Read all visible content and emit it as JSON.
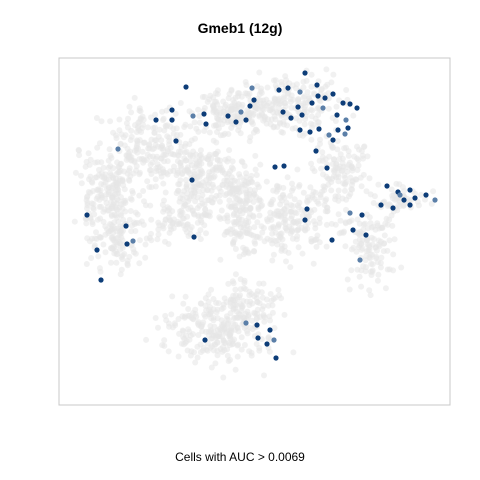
{
  "chart_data": {
    "type": "scatter",
    "title": "Gmeb1 (12g)",
    "xlabel": "Cells with AUC > 0.0069",
    "ylabel": "",
    "grid": false,
    "legend": "none",
    "background_color": "#e6e6e6",
    "highlight_color_dark": "#0d3d78",
    "highlight_color_light": "#5b7fa8",
    "series": [
      {
        "name": "",
        "color": "#0d3d78",
        "points": [
          [
            305,
            73
          ],
          [
            317,
            85
          ],
          [
            288,
            88
          ],
          [
            300,
            92
          ],
          [
            318,
            96
          ],
          [
            325,
            98
          ],
          [
            333,
            94
          ],
          [
            312,
            103
          ],
          [
            323,
            108
          ],
          [
            343,
            103
          ],
          [
            350,
            104
          ],
          [
            357,
            108
          ],
          [
            337,
            115
          ],
          [
            346,
            120
          ],
          [
            298,
            107
          ],
          [
            302,
            115
          ],
          [
            291,
            118
          ],
          [
            283,
            112
          ],
          [
            252,
            88
          ],
          [
            254,
            100
          ],
          [
            246,
            120
          ],
          [
            236,
            122
          ],
          [
            228,
            116
          ],
          [
            241,
            112
          ],
          [
            250,
            106
          ],
          [
            186,
            87
          ],
          [
            172,
            110
          ],
          [
            172,
            120
          ],
          [
            193,
            116
          ],
          [
            204,
            114
          ],
          [
            206,
            124
          ],
          [
            156,
            120
          ],
          [
            176,
            141
          ],
          [
            118,
            149
          ],
          [
            192,
            180
          ],
          [
            300,
            130
          ],
          [
            310,
            132
          ],
          [
            319,
            129
          ],
          [
            329,
            135
          ],
          [
            333,
            140
          ],
          [
            316,
            151
          ],
          [
            327,
            168
          ],
          [
            348,
            128
          ],
          [
            345,
            134
          ],
          [
            338,
            130
          ],
          [
            387,
            186
          ],
          [
            398,
            192
          ],
          [
            410,
            190
          ],
          [
            400,
            195
          ],
          [
            404,
            200
          ],
          [
            410,
            205
          ],
          [
            415,
            198
          ],
          [
            426,
            195
          ],
          [
            435,
            200
          ],
          [
            381,
            205
          ],
          [
            393,
            208
          ],
          [
            307,
            209
          ],
          [
            305,
            220
          ],
          [
            350,
            213
          ],
          [
            362,
            215
          ],
          [
            353,
            230
          ],
          [
            366,
            235
          ],
          [
            332,
            240
          ],
          [
            360,
            260
          ],
          [
            275,
            167
          ],
          [
            284,
            166
          ],
          [
            87,
            215
          ],
          [
            126,
            226
          ],
          [
            133,
            241
          ],
          [
            127,
            244
          ],
          [
            97,
            250
          ],
          [
            194,
            237
          ],
          [
            101,
            280
          ],
          [
            246,
            323
          ],
          [
            257,
            325
          ],
          [
            270,
            330
          ],
          [
            258,
            338
          ],
          [
            267,
            344
          ],
          [
            274,
            340
          ],
          [
            276,
            358
          ],
          [
            205,
            340
          ],
          [
            279,
            90
          ]
        ]
      }
    ]
  }
}
